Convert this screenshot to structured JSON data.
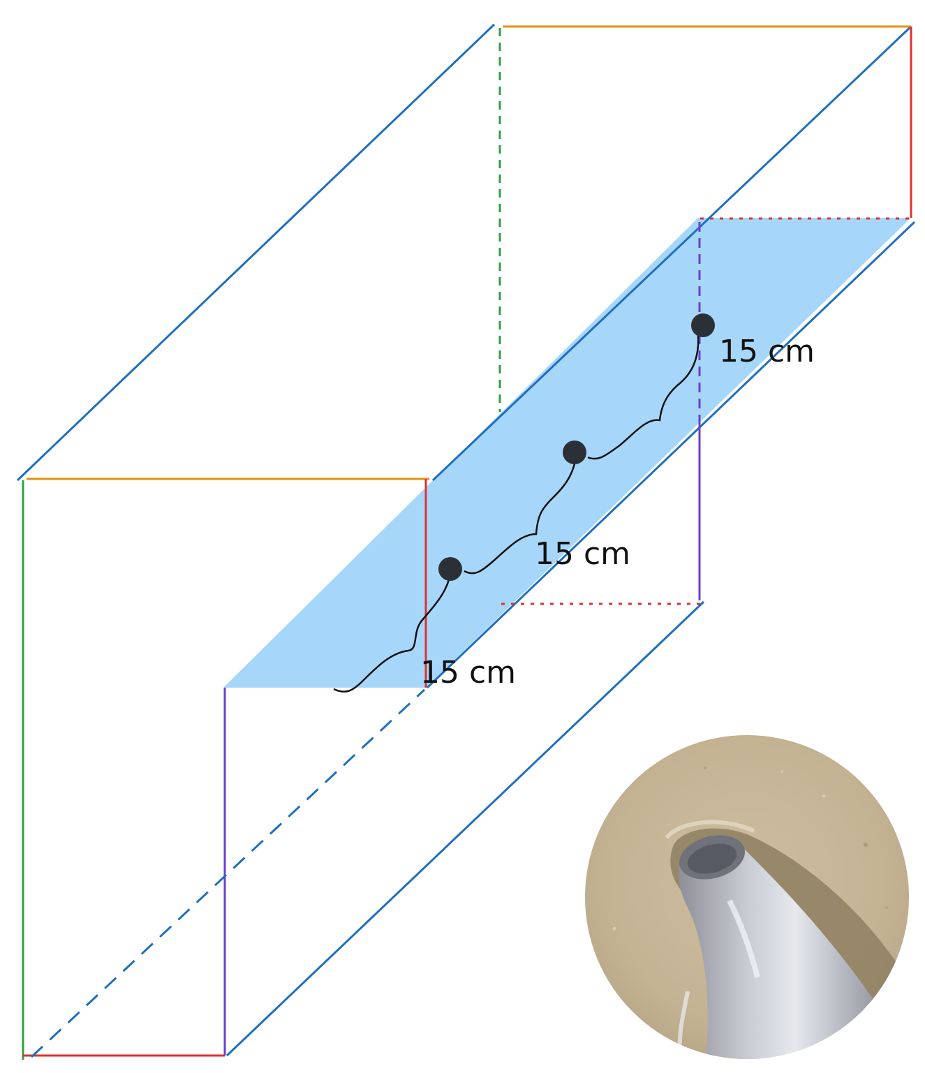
{
  "labels": {
    "spacing_top": "15 cm",
    "spacing_middle": "15 cm",
    "spacing_bottom": "15 cm"
  },
  "colors": {
    "blue_edge": "#1f6fbf",
    "orange_edge": "#e8900c",
    "red_edge": "#e03030",
    "green_edge": "#2ea043",
    "purple_edge": "#6a3fd0",
    "shelf_fill": "#a6d7fb",
    "dot": "#2b2f36",
    "sand": "#c9b99a"
  },
  "icons": {
    "photo": "hose-in-sand-photo"
  }
}
